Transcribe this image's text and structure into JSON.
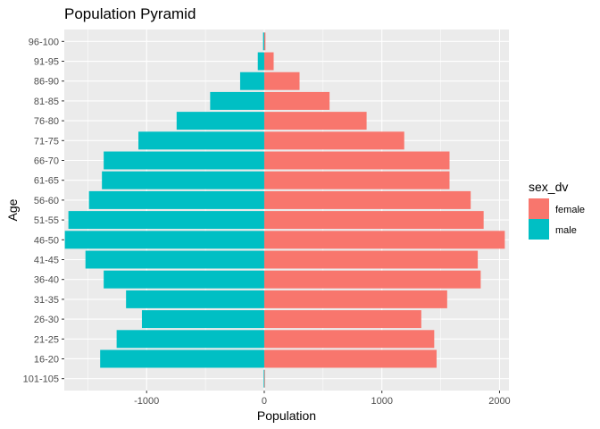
{
  "chart_data": {
    "type": "bar",
    "orientation": "horizontal",
    "title": "Population Pyramid",
    "xlabel": "Population",
    "ylabel": "Age",
    "xlim": [
      -1700,
      2080
    ],
    "xticks": [
      -1000,
      0,
      1000,
      2000
    ],
    "xtick_labels": [
      "-1000",
      "0",
      "1000",
      "2000"
    ],
    "categories": [
      "101-105",
      "16-20",
      "21-25",
      "26-30",
      "31-35",
      "36-40",
      "41-45",
      "46-50",
      "51-55",
      "56-60",
      "61-65",
      "66-70",
      "71-75",
      "76-80",
      "81-85",
      "86-90",
      "91-95",
      "96-100"
    ],
    "series": [
      {
        "name": "female",
        "color": "#F8766D",
        "values": [
          5,
          1465,
          1445,
          1335,
          1555,
          1840,
          1815,
          2045,
          1865,
          1755,
          1575,
          1575,
          1190,
          870,
          555,
          300,
          80,
          10
        ]
      },
      {
        "name": "male",
        "color": "#00BFC4",
        "values": [
          -5,
          -1395,
          -1255,
          -1040,
          -1175,
          -1365,
          -1520,
          -1695,
          -1665,
          -1490,
          -1380,
          -1365,
          -1070,
          -745,
          -460,
          -205,
          -55,
          -10
        ]
      }
    ],
    "legend": {
      "title": "sex_dv",
      "position": "right",
      "items": [
        "female",
        "male"
      ]
    },
    "grid": true,
    "background": "#EBEBEB"
  }
}
